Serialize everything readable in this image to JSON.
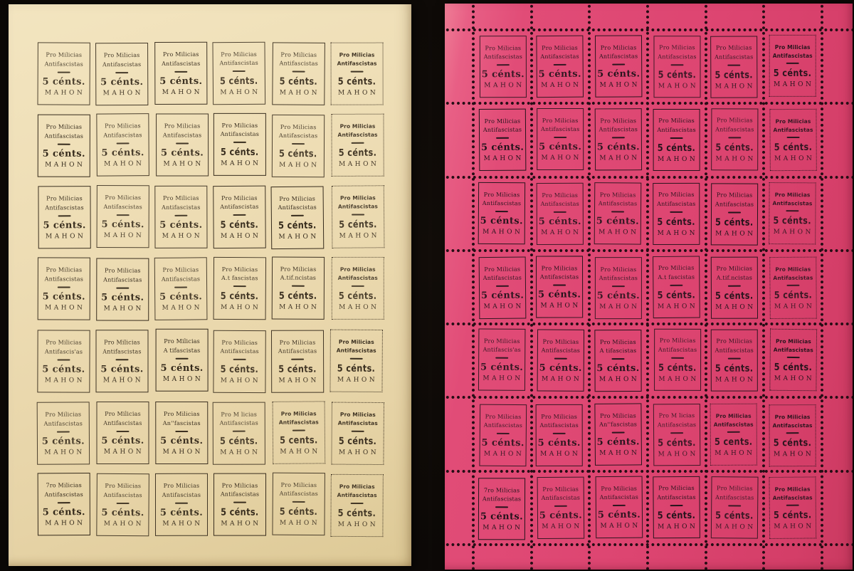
{
  "scene": {
    "type": "photograph",
    "description": "Two complete printing sheets (6 columns x 7 rows, 42 labels each) of Spanish Civil War 'Pro Milicias Antifascistas' 5 centimos MAHON charity stamps laid on a black background; left sheet printed on cream paper (imperforate), right sheet printed on magenta paper (perforated with punched holes).",
    "background_color": "#0b0806"
  },
  "stamp_text": {
    "line1": "Pro Milicias",
    "line2": "Antifascistas",
    "value": "5 cénts.",
    "city": "MAHON"
  },
  "grid": {
    "rows": 7,
    "cols": 6,
    "stamps_per_sheet": 42,
    "total_stamps": 84
  },
  "sheets": [
    {
      "id": "cream",
      "label": "cream-sheet",
      "paper_color": "#ebdab0",
      "ink_color": "#33281a",
      "perforated": false,
      "frame_note": "thin black frame rules; rightmost column framed with dotted rule and bolder type"
    },
    {
      "id": "magenta",
      "label": "magenta-sheet",
      "paper_color": "#e04a74",
      "ink_color": "#20131a",
      "perforated": true,
      "perforation_dot_color": "#260d15",
      "frame_note": "same typeset forme as cream sheet, with rows of punched perforation holes between all stamps and along margins"
    }
  ],
  "print_variants": [
    {
      "row": 4,
      "col": 4,
      "field": "line2",
      "text": "A.t fascistas"
    },
    {
      "row": 4,
      "col": 5,
      "field": "line2",
      "text": "A.tif.ncistas"
    },
    {
      "row": 5,
      "col": 1,
      "field": "line2",
      "text": "Antifascis'as"
    },
    {
      "row": 5,
      "col": 3,
      "field": "line2",
      "text": "A tifascistas"
    },
    {
      "row": 6,
      "col": 3,
      "field": "line2",
      "text": "An''fascistas"
    },
    {
      "row": 6,
      "col": 4,
      "field": "line1",
      "text": "Pro M licias"
    },
    {
      "row": 6,
      "col": 5,
      "field": "value",
      "text": "5 cents."
    },
    {
      "row": 7,
      "col": 1,
      "field": "line1",
      "text": "7ro Milicias",
      "note": "damaged 'P' sort, reads like a 7"
    }
  ],
  "style_variants": [
    {
      "row": 6,
      "col": 5,
      "frame": "dotted"
    }
  ]
}
